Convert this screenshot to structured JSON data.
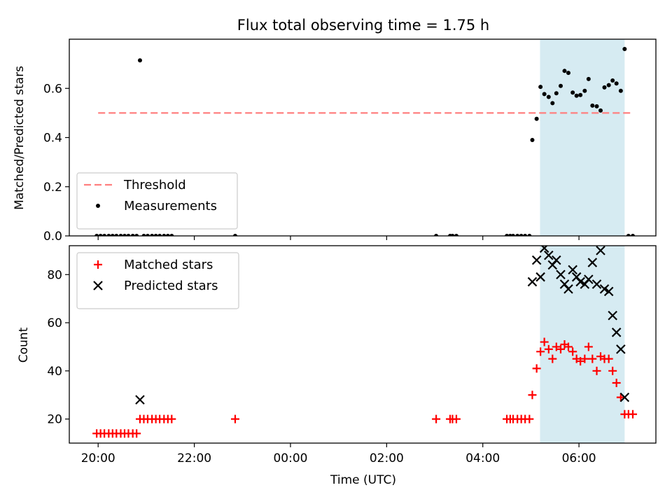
{
  "chart_data": {
    "title": "Flux total observing time = 1.75 h",
    "xlabel": "Time (UTC)",
    "x_tick_labels": [
      "20:00",
      "22:00",
      "00:00",
      "02:00",
      "04:00",
      "06:00"
    ],
    "x_ticks_hours": [
      20,
      22,
      24,
      26,
      28,
      30
    ],
    "xlim_hours": [
      19.4,
      31.6
    ],
    "shaded_interval_hours": [
      29.19,
      30.95
    ],
    "colors": {
      "threshold": "#ff7f7f",
      "matched": "#ff0000",
      "predicted": "#000000",
      "measurement": "#000000",
      "shade": "#add8e6"
    },
    "panels": [
      {
        "type": "scatter",
        "ylabel": "Matched/Predicted stars",
        "ylim": [
          0,
          0.8
        ],
        "y_ticks": [
          0.0,
          0.2,
          0.4,
          0.6
        ],
        "y_tick_labels": [
          "0.0",
          "0.2",
          "0.4",
          "0.6"
        ],
        "legend_position": "lower-left",
        "threshold": {
          "name": "Threshold",
          "value": 0.5,
          "x_range_hours": [
            20.0,
            31.1
          ]
        },
        "series": [
          {
            "name": "Measurements",
            "marker": "dot",
            "points": [
              [
                19.97,
                0
              ],
              [
                20.05,
                0
              ],
              [
                20.13,
                0
              ],
              [
                20.22,
                0
              ],
              [
                20.3,
                0
              ],
              [
                20.38,
                0
              ],
              [
                20.47,
                0
              ],
              [
                20.55,
                0
              ],
              [
                20.63,
                0
              ],
              [
                20.72,
                0
              ],
              [
                20.8,
                0
              ],
              [
                20.87,
                0.714
              ],
              [
                20.95,
                0
              ],
              [
                21.03,
                0
              ],
              [
                21.12,
                0
              ],
              [
                21.2,
                0
              ],
              [
                21.28,
                0
              ],
              [
                21.37,
                0
              ],
              [
                21.45,
                0
              ],
              [
                21.53,
                0
              ],
              [
                22.85,
                0
              ],
              [
                27.03,
                0
              ],
              [
                27.32,
                0
              ],
              [
                27.37,
                0
              ],
              [
                27.45,
                0
              ],
              [
                28.5,
                0
              ],
              [
                28.57,
                0
              ],
              [
                28.63,
                0
              ],
              [
                28.72,
                0
              ],
              [
                28.8,
                0
              ],
              [
                28.88,
                0
              ],
              [
                28.97,
                0
              ],
              [
                29.03,
                0.39
              ],
              [
                29.12,
                0.476
              ],
              [
                29.2,
                0.606
              ],
              [
                29.28,
                0.577
              ],
              [
                29.37,
                0.565
              ],
              [
                29.45,
                0.54
              ],
              [
                29.53,
                0.58
              ],
              [
                29.62,
                0.61
              ],
              [
                29.7,
                0.671
              ],
              [
                29.78,
                0.663
              ],
              [
                29.87,
                0.583
              ],
              [
                29.95,
                0.57
              ],
              [
                30.03,
                0.573
              ],
              [
                30.12,
                0.59
              ],
              [
                30.2,
                0.638
              ],
              [
                30.28,
                0.53
              ],
              [
                30.37,
                0.527
              ],
              [
                30.45,
                0.51
              ],
              [
                30.53,
                0.604
              ],
              [
                30.62,
                0.613
              ],
              [
                30.7,
                0.632
              ],
              [
                30.78,
                0.62
              ],
              [
                30.87,
                0.59
              ],
              [
                30.95,
                0.76
              ],
              [
                31.03,
                0
              ],
              [
                31.12,
                0
              ]
            ]
          }
        ]
      },
      {
        "type": "scatter",
        "ylabel": "Count",
        "ylim": [
          10,
          92
        ],
        "y_ticks": [
          20,
          40,
          60,
          80
        ],
        "y_tick_labels": [
          "20",
          "40",
          "60",
          "80"
        ],
        "legend_position": "upper-left",
        "series": [
          {
            "name": "Matched stars",
            "marker": "plus",
            "points": [
              [
                19.97,
                14
              ],
              [
                20.05,
                14
              ],
              [
                20.13,
                14
              ],
              [
                20.22,
                14
              ],
              [
                20.3,
                14
              ],
              [
                20.38,
                14
              ],
              [
                20.47,
                14
              ],
              [
                20.55,
                14
              ],
              [
                20.63,
                14
              ],
              [
                20.72,
                14
              ],
              [
                20.8,
                14
              ],
              [
                20.87,
                20
              ],
              [
                20.95,
                20
              ],
              [
                21.03,
                20
              ],
              [
                21.12,
                20
              ],
              [
                21.2,
                20
              ],
              [
                21.28,
                20
              ],
              [
                21.37,
                20
              ],
              [
                21.45,
                20
              ],
              [
                21.53,
                20
              ],
              [
                22.85,
                20
              ],
              [
                27.03,
                20
              ],
              [
                27.32,
                20
              ],
              [
                27.37,
                20
              ],
              [
                27.45,
                20
              ],
              [
                28.5,
                20
              ],
              [
                28.57,
                20
              ],
              [
                28.63,
                20
              ],
              [
                28.72,
                20
              ],
              [
                28.8,
                20
              ],
              [
                28.88,
                20
              ],
              [
                28.97,
                20
              ],
              [
                29.03,
                30
              ],
              [
                29.12,
                41
              ],
              [
                29.2,
                48
              ],
              [
                29.28,
                52
              ],
              [
                29.37,
                49
              ],
              [
                29.45,
                45
              ],
              [
                29.53,
                50
              ],
              [
                29.62,
                49
              ],
              [
                29.7,
                51
              ],
              [
                29.78,
                50
              ],
              [
                29.87,
                48
              ],
              [
                29.95,
                45
              ],
              [
                30.03,
                44
              ],
              [
                30.12,
                45
              ],
              [
                30.2,
                50
              ],
              [
                30.28,
                45
              ],
              [
                30.37,
                40
              ],
              [
                30.45,
                46
              ],
              [
                30.53,
                45
              ],
              [
                30.62,
                45
              ],
              [
                30.7,
                40
              ],
              [
                30.78,
                35
              ],
              [
                30.87,
                29
              ],
              [
                30.95,
                22
              ],
              [
                31.03,
                22
              ],
              [
                31.12,
                22
              ]
            ]
          },
          {
            "name": "Predicted stars",
            "marker": "x",
            "points": [
              [
                20.87,
                28
              ],
              [
                29.03,
                77
              ],
              [
                29.12,
                86
              ],
              [
                29.2,
                79
              ],
              [
                29.28,
                91
              ],
              [
                29.37,
                88
              ],
              [
                29.45,
                84
              ],
              [
                29.53,
                86
              ],
              [
                29.62,
                80
              ],
              [
                29.7,
                76
              ],
              [
                29.78,
                74
              ],
              [
                29.87,
                82
              ],
              [
                29.95,
                79
              ],
              [
                30.03,
                77
              ],
              [
                30.12,
                76
              ],
              [
                30.2,
                78
              ],
              [
                30.28,
                85
              ],
              [
                30.37,
                76
              ],
              [
                30.45,
                90
              ],
              [
                30.53,
                74
              ],
              [
                30.62,
                73
              ],
              [
                30.7,
                63
              ],
              [
                30.78,
                56
              ],
              [
                30.87,
                49
              ],
              [
                30.95,
                29
              ]
            ]
          }
        ]
      }
    ]
  }
}
